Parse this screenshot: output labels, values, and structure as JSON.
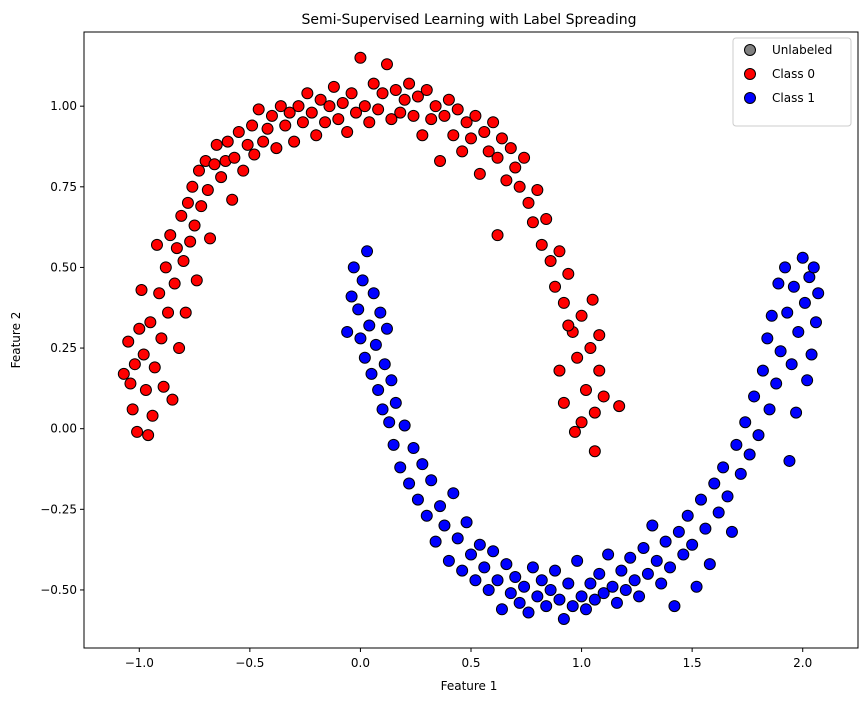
{
  "chart_data": {
    "type": "scatter",
    "title": "Semi-Supervised Learning with Label Spreading",
    "xlabel": "Feature 1",
    "ylabel": "Feature 2",
    "xlim": [
      -1.25,
      2.25
    ],
    "ylim": [
      -0.68,
      1.23
    ],
    "xticks": [
      -1.0,
      -0.5,
      0.0,
      0.5,
      1.0,
      1.5,
      2.0
    ],
    "xtick_labels": [
      "−1.0",
      "−0.5",
      "0.0",
      "0.5",
      "1.0",
      "1.5",
      "2.0"
    ],
    "yticks": [
      -0.5,
      -0.25,
      0.0,
      0.25,
      0.5,
      0.75,
      1.0
    ],
    "ytick_labels": [
      "−0.50",
      "−0.25",
      "0.00",
      "0.25",
      "0.50",
      "0.75",
      "1.00"
    ],
    "grid": false,
    "legend_position": "top-right",
    "legend": [
      {
        "label": "Unlabeled",
        "color": "#808080"
      },
      {
        "label": "Class 0",
        "color": "#ff0000"
      },
      {
        "label": "Class 1",
        "color": "#0000ff"
      }
    ],
    "series": [
      {
        "name": "Class 0",
        "color": "#ff0000",
        "points": [
          [
            -1.07,
            0.17
          ],
          [
            -1.05,
            0.27
          ],
          [
            -1.04,
            0.14
          ],
          [
            -1.03,
            0.06
          ],
          [
            -1.02,
            0.2
          ],
          [
            -1.01,
            -0.01
          ],
          [
            -1.0,
            0.31
          ],
          [
            -0.99,
            0.43
          ],
          [
            -0.98,
            0.23
          ],
          [
            -0.97,
            0.12
          ],
          [
            -0.96,
            -0.02
          ],
          [
            -0.95,
            0.33
          ],
          [
            -0.94,
            0.04
          ],
          [
            -0.93,
            0.19
          ],
          [
            -0.92,
            0.57
          ],
          [
            -0.91,
            0.42
          ],
          [
            -0.9,
            0.28
          ],
          [
            -0.89,
            0.13
          ],
          [
            -0.88,
            0.5
          ],
          [
            -0.87,
            0.36
          ],
          [
            -0.86,
            0.6
          ],
          [
            -0.85,
            0.09
          ],
          [
            -0.84,
            0.45
          ],
          [
            -0.83,
            0.56
          ],
          [
            -0.82,
            0.25
          ],
          [
            -0.81,
            0.66
          ],
          [
            -0.8,
            0.52
          ],
          [
            -0.79,
            0.36
          ],
          [
            -0.78,
            0.7
          ],
          [
            -0.77,
            0.58
          ],
          [
            -0.76,
            0.75
          ],
          [
            -0.75,
            0.63
          ],
          [
            -0.74,
            0.46
          ],
          [
            -0.73,
            0.8
          ],
          [
            -0.72,
            0.69
          ],
          [
            -0.7,
            0.83
          ],
          [
            -0.69,
            0.74
          ],
          [
            -0.68,
            0.59
          ],
          [
            -0.66,
            0.82
          ],
          [
            -0.65,
            0.88
          ],
          [
            -0.63,
            0.78
          ],
          [
            -0.61,
            0.83
          ],
          [
            -0.6,
            0.89
          ],
          [
            -0.58,
            0.71
          ],
          [
            -0.57,
            0.84
          ],
          [
            -0.55,
            0.92
          ],
          [
            -0.53,
            0.8
          ],
          [
            -0.51,
            0.88
          ],
          [
            -0.49,
            0.94
          ],
          [
            -0.48,
            0.85
          ],
          [
            -0.46,
            0.99
          ],
          [
            -0.44,
            0.89
          ],
          [
            -0.42,
            0.93
          ],
          [
            -0.4,
            0.97
          ],
          [
            -0.38,
            0.87
          ],
          [
            -0.36,
            1.0
          ],
          [
            -0.34,
            0.94
          ],
          [
            -0.32,
            0.98
          ],
          [
            -0.3,
            0.89
          ],
          [
            -0.28,
            1.0
          ],
          [
            -0.26,
            0.95
          ],
          [
            -0.24,
            1.04
          ],
          [
            -0.22,
            0.98
          ],
          [
            -0.2,
            0.91
          ],
          [
            -0.18,
            1.02
          ],
          [
            -0.16,
            0.95
          ],
          [
            -0.14,
            1.0
          ],
          [
            -0.12,
            1.06
          ],
          [
            -0.1,
            0.96
          ],
          [
            -0.08,
            1.01
          ],
          [
            -0.06,
            0.92
          ],
          [
            -0.04,
            1.04
          ],
          [
            -0.02,
            0.98
          ],
          [
            0.0,
            1.15
          ],
          [
            0.02,
            1.0
          ],
          [
            0.04,
            0.95
          ],
          [
            0.06,
            1.07
          ],
          [
            0.08,
            0.99
          ],
          [
            0.1,
            1.04
          ],
          [
            0.12,
            1.13
          ],
          [
            0.14,
            0.96
          ],
          [
            0.16,
            1.05
          ],
          [
            0.18,
            0.98
          ],
          [
            0.2,
            1.02
          ],
          [
            0.22,
            1.07
          ],
          [
            0.24,
            0.97
          ],
          [
            0.26,
            1.03
          ],
          [
            0.28,
            0.91
          ],
          [
            0.3,
            1.05
          ],
          [
            0.32,
            0.96
          ],
          [
            0.34,
            1.0
          ],
          [
            0.36,
            0.83
          ],
          [
            0.38,
            0.97
          ],
          [
            0.4,
            1.02
          ],
          [
            0.42,
            0.91
          ],
          [
            0.44,
            0.99
          ],
          [
            0.46,
            0.86
          ],
          [
            0.48,
            0.95
          ],
          [
            0.5,
            0.9
          ],
          [
            0.52,
            0.97
          ],
          [
            0.54,
            0.79
          ],
          [
            0.56,
            0.92
          ],
          [
            0.58,
            0.86
          ],
          [
            0.6,
            0.95
          ],
          [
            0.62,
            0.84
          ],
          [
            0.64,
            0.9
          ],
          [
            0.66,
            0.77
          ],
          [
            0.68,
            0.87
          ],
          [
            0.7,
            0.81
          ],
          [
            0.72,
            0.75
          ],
          [
            0.74,
            0.84
          ],
          [
            0.76,
            0.7
          ],
          [
            0.78,
            0.64
          ],
          [
            0.8,
            0.74
          ],
          [
            0.62,
            0.6
          ],
          [
            0.82,
            0.57
          ],
          [
            0.84,
            0.65
          ],
          [
            0.86,
            0.52
          ],
          [
            0.88,
            0.44
          ],
          [
            0.9,
            0.55
          ],
          [
            0.92,
            0.39
          ],
          [
            0.94,
            0.48
          ],
          [
            0.96,
            0.3
          ],
          [
            0.98,
            0.22
          ],
          [
            1.0,
            0.35
          ],
          [
            1.02,
            0.12
          ],
          [
            1.04,
            0.25
          ],
          [
            1.05,
            0.4
          ],
          [
            1.06,
            0.05
          ],
          [
            1.08,
            0.18
          ],
          [
            0.9,
            0.18
          ],
          [
            0.92,
            0.08
          ],
          [
            0.94,
            0.32
          ],
          [
            1.1,
            0.1
          ],
          [
            1.06,
            -0.07
          ],
          [
            1.17,
            0.07
          ],
          [
            1.08,
            0.29
          ],
          [
            0.97,
            -0.01
          ],
          [
            1.0,
            0.02
          ]
        ]
      },
      {
        "name": "Class 1",
        "color": "#0000ff",
        "points": [
          [
            -0.06,
            0.3
          ],
          [
            -0.04,
            0.41
          ],
          [
            -0.03,
            0.5
          ],
          [
            -0.01,
            0.37
          ],
          [
            0.0,
            0.28
          ],
          [
            0.01,
            0.46
          ],
          [
            0.02,
            0.22
          ],
          [
            0.03,
            0.55
          ],
          [
            0.04,
            0.32
          ],
          [
            0.05,
            0.17
          ],
          [
            0.06,
            0.42
          ],
          [
            0.07,
            0.26
          ],
          [
            0.08,
            0.12
          ],
          [
            0.09,
            0.36
          ],
          [
            0.1,
            0.06
          ],
          [
            0.11,
            0.2
          ],
          [
            0.12,
            0.31
          ],
          [
            0.13,
            0.02
          ],
          [
            0.14,
            0.15
          ],
          [
            0.15,
            -0.05
          ],
          [
            0.16,
            0.08
          ],
          [
            0.18,
            -0.12
          ],
          [
            0.2,
            0.01
          ],
          [
            0.22,
            -0.17
          ],
          [
            0.24,
            -0.06
          ],
          [
            0.26,
            -0.22
          ],
          [
            0.28,
            -0.11
          ],
          [
            0.3,
            -0.27
          ],
          [
            0.32,
            -0.16
          ],
          [
            0.34,
            -0.35
          ],
          [
            0.36,
            -0.24
          ],
          [
            0.38,
            -0.3
          ],
          [
            0.4,
            -0.41
          ],
          [
            0.42,
            -0.2
          ],
          [
            0.44,
            -0.34
          ],
          [
            0.46,
            -0.44
          ],
          [
            0.48,
            -0.29
          ],
          [
            0.5,
            -0.39
          ],
          [
            0.52,
            -0.47
          ],
          [
            0.54,
            -0.36
          ],
          [
            0.56,
            -0.43
          ],
          [
            0.58,
            -0.5
          ],
          [
            0.6,
            -0.38
          ],
          [
            0.62,
            -0.47
          ],
          [
            0.64,
            -0.56
          ],
          [
            0.66,
            -0.42
          ],
          [
            0.68,
            -0.51
          ],
          [
            0.7,
            -0.46
          ],
          [
            0.72,
            -0.54
          ],
          [
            0.74,
            -0.49
          ],
          [
            0.76,
            -0.57
          ],
          [
            0.78,
            -0.43
          ],
          [
            0.8,
            -0.52
          ],
          [
            0.82,
            -0.47
          ],
          [
            0.84,
            -0.55
          ],
          [
            0.86,
            -0.5
          ],
          [
            0.88,
            -0.44
          ],
          [
            0.9,
            -0.53
          ],
          [
            0.92,
            -0.59
          ],
          [
            0.94,
            -0.48
          ],
          [
            0.96,
            -0.55
          ],
          [
            0.98,
            -0.41
          ],
          [
            1.0,
            -0.52
          ],
          [
            1.02,
            -0.56
          ],
          [
            1.04,
            -0.48
          ],
          [
            1.06,
            -0.53
          ],
          [
            1.08,
            -0.45
          ],
          [
            1.1,
            -0.51
          ],
          [
            1.12,
            -0.39
          ],
          [
            1.14,
            -0.49
          ],
          [
            1.16,
            -0.54
          ],
          [
            1.18,
            -0.44
          ],
          [
            1.2,
            -0.5
          ],
          [
            1.22,
            -0.4
          ],
          [
            1.24,
            -0.47
          ],
          [
            1.26,
            -0.52
          ],
          [
            1.28,
            -0.37
          ],
          [
            1.3,
            -0.45
          ],
          [
            1.32,
            -0.3
          ],
          [
            1.34,
            -0.41
          ],
          [
            1.36,
            -0.48
          ],
          [
            1.38,
            -0.35
          ],
          [
            1.4,
            -0.43
          ],
          [
            1.42,
            -0.55
          ],
          [
            1.44,
            -0.32
          ],
          [
            1.46,
            -0.39
          ],
          [
            1.48,
            -0.27
          ],
          [
            1.5,
            -0.36
          ],
          [
            1.52,
            -0.49
          ],
          [
            1.54,
            -0.22
          ],
          [
            1.56,
            -0.31
          ],
          [
            1.58,
            -0.42
          ],
          [
            1.6,
            -0.17
          ],
          [
            1.62,
            -0.26
          ],
          [
            1.64,
            -0.12
          ],
          [
            1.66,
            -0.21
          ],
          [
            1.68,
            -0.32
          ],
          [
            1.7,
            -0.05
          ],
          [
            1.72,
            -0.14
          ],
          [
            1.74,
            0.02
          ],
          [
            1.76,
            -0.08
          ],
          [
            1.78,
            0.1
          ],
          [
            1.8,
            -0.02
          ],
          [
            1.82,
            0.18
          ],
          [
            1.84,
            0.28
          ],
          [
            1.85,
            0.06
          ],
          [
            1.86,
            0.35
          ],
          [
            1.88,
            0.14
          ],
          [
            1.89,
            0.45
          ],
          [
            1.9,
            0.24
          ],
          [
            1.92,
            0.5
          ],
          [
            1.93,
            0.36
          ],
          [
            1.94,
            -0.1
          ],
          [
            1.95,
            0.2
          ],
          [
            1.96,
            0.44
          ],
          [
            1.97,
            0.05
          ],
          [
            1.98,
            0.3
          ],
          [
            2.0,
            0.53
          ],
          [
            2.01,
            0.39
          ],
          [
            2.02,
            0.15
          ],
          [
            2.03,
            0.47
          ],
          [
            2.04,
            0.23
          ],
          [
            2.05,
            0.5
          ],
          [
            2.06,
            0.33
          ],
          [
            2.07,
            0.42
          ]
        ]
      }
    ]
  }
}
